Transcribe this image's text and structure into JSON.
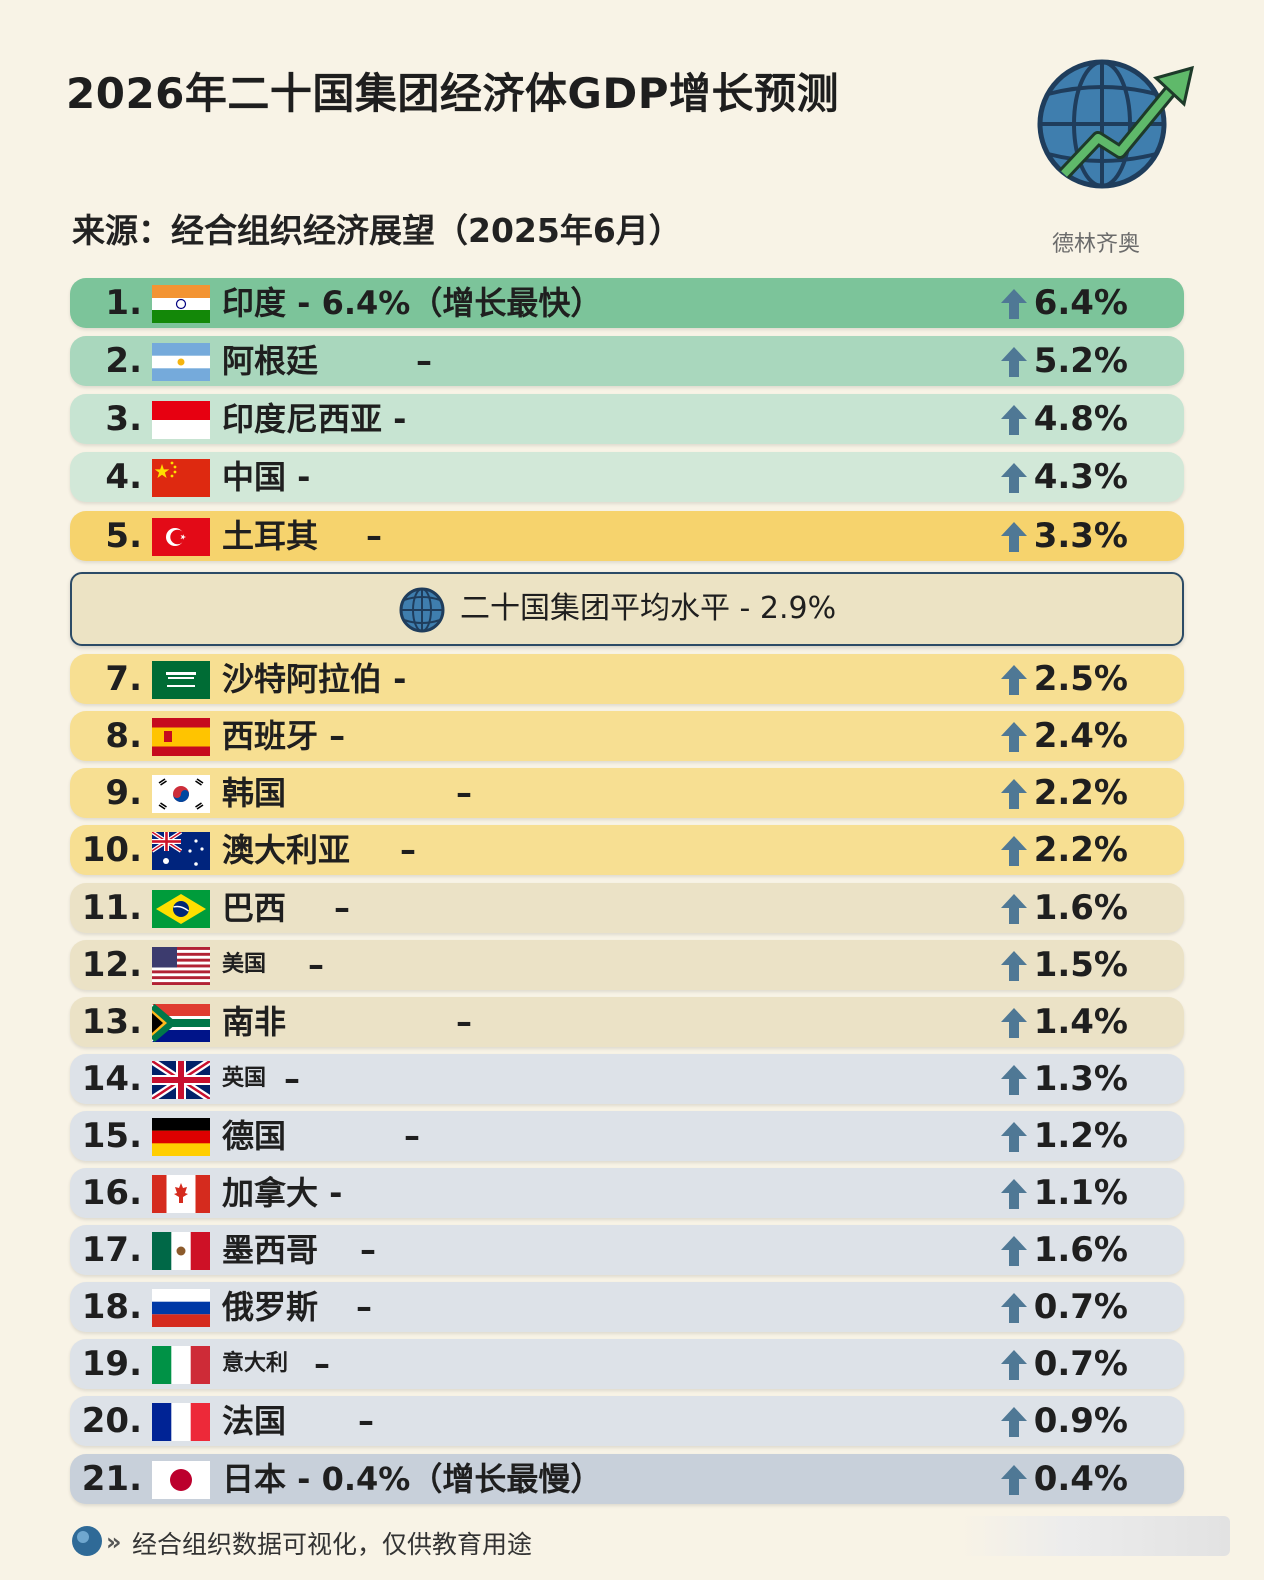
{
  "title": "2026年二十国集团经济体GDP增长预测",
  "source": "来源：经合组织经济展望（2025年6月）",
  "logo_caption": "德林齐奥",
  "average": {
    "label": "二十国集团平均水平 - 2.9%"
  },
  "footer": {
    "text": "经合组织数据可视化，仅供教育用途"
  },
  "colors": {
    "green_strong": "#7cc49a",
    "green_mid": "#a9d7bd",
    "green_light": "#c7e4d2",
    "green_pale": "#d2e8d8",
    "yellow_strong": "#f6d36d",
    "yellow_light": "#f7df92",
    "beige": "#ebe2c6",
    "gray_blue": "#dde2e8",
    "gray_blue_dark": "#c8d0da",
    "arrow": "#4f7895"
  },
  "rows": [
    {
      "rank": "1.",
      "name": "印度 - 6.4%（增长最快）",
      "value": "6.4%",
      "flag": "india-flag",
      "color": "green_strong"
    },
    {
      "rank": "2.",
      "name": "阿根廷",
      "dash": "–",
      "value": "5.2%",
      "flag": "argentina-flag",
      "color": "green_mid"
    },
    {
      "rank": "3.",
      "name": "印度尼西亚 -",
      "value": "4.8%",
      "flag": "indonesia-flag",
      "color": "green_light"
    },
    {
      "rank": "4.",
      "name": "中国 -",
      "value": "4.3%",
      "flag": "china-flag",
      "color": "green_pale"
    },
    {
      "rank": "5.",
      "name": "土耳其",
      "dash": "–",
      "value": "3.3%",
      "flag": "turkey-flag",
      "color": "yellow_strong"
    },
    {
      "rank": "7.",
      "name": "沙特阿拉伯 -",
      "value": "2.5%",
      "flag": "saudi-flag",
      "color": "yellow_light"
    },
    {
      "rank": "8.",
      "name": "西班牙 –",
      "value": "2.4%",
      "flag": "spain-flag",
      "color": "yellow_light"
    },
    {
      "rank": "9.",
      "name": "韩国",
      "dash": "–",
      "value": "2.2%",
      "flag": "korea-flag",
      "color": "yellow_light"
    },
    {
      "rank": "10.",
      "name": "澳大利亚",
      "dash": "–",
      "value": "2.2%",
      "flag": "australia-flag",
      "color": "yellow_light"
    },
    {
      "rank": "11.",
      "name": "巴西",
      "dash": "–",
      "value": "1.6%",
      "flag": "brazil-flag",
      "color": "beige"
    },
    {
      "rank": "12.",
      "name": "美国",
      "dash": "–",
      "value": "1.5%",
      "flag": "usa-flag",
      "color": "beige",
      "small": true
    },
    {
      "rank": "13.",
      "name": "南非",
      "dash": "–",
      "value": "1.4%",
      "flag": "southafrica-flag",
      "color": "beige"
    },
    {
      "rank": "14.",
      "name": "英国",
      "dash": "–",
      "value": "1.3%",
      "flag": "uk-flag",
      "color": "gray_blue",
      "small": true
    },
    {
      "rank": "15.",
      "name": "德国",
      "dash": "–",
      "value": "1.2%",
      "flag": "germany-flag",
      "color": "gray_blue"
    },
    {
      "rank": "16.",
      "name": "加拿大 -",
      "value": "1.1%",
      "flag": "canada-flag",
      "color": "gray_blue"
    },
    {
      "rank": "17.",
      "name": "墨西哥",
      "dash": "–",
      "value": "1.6%",
      "flag": "mexico-flag",
      "color": "gray_blue"
    },
    {
      "rank": "18.",
      "name": "俄罗斯",
      "dash": "–",
      "value": "0.7%",
      "flag": "russia-flag",
      "color": "gray_blue"
    },
    {
      "rank": "19.",
      "name": "意大利",
      "dash": "–",
      "value": "0.7%",
      "flag": "italy-flag",
      "color": "gray_blue",
      "small": true
    },
    {
      "rank": "20.",
      "name": "法国",
      "dash": "–",
      "value": "0.9%",
      "flag": "france-flag",
      "color": "gray_blue"
    },
    {
      "rank": "21.",
      "name": "日本 - 0.4%（增长最慢）",
      "value": "0.4%",
      "flag": "japan-flag",
      "color": "gray_blue_dark"
    }
  ]
}
